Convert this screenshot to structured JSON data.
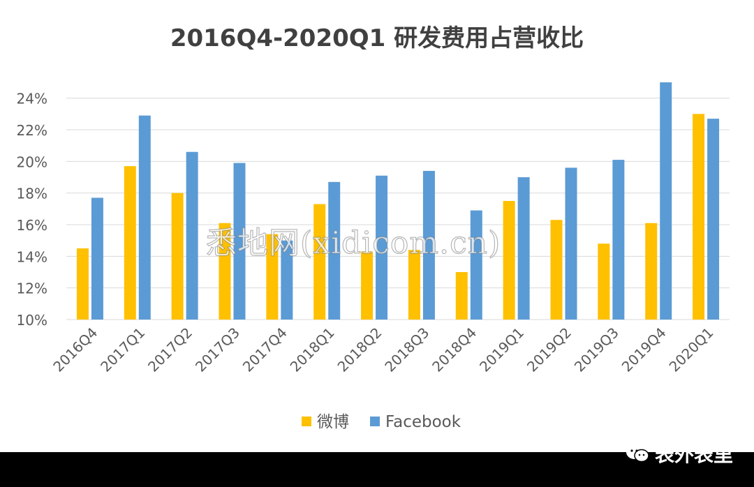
{
  "chart_data": {
    "type": "bar",
    "title": "2016Q4-2020Q1 研发费用占营收比",
    "categories": [
      "2016Q4",
      "2017Q1",
      "2017Q2",
      "2017Q3",
      "2017Q4",
      "2018Q1",
      "2018Q2",
      "2018Q3",
      "2018Q4",
      "2019Q1",
      "2019Q2",
      "2019Q3",
      "2019Q4",
      "2020Q1"
    ],
    "series": [
      {
        "name": "微博",
        "color": "#FFC000",
        "values": [
          14.5,
          19.7,
          18.0,
          16.1,
          15.4,
          17.3,
          14.3,
          14.4,
          13.0,
          17.5,
          16.3,
          14.8,
          16.1,
          23.0
        ]
      },
      {
        "name": "Facebook",
        "color": "#5B9BD5",
        "values": [
          17.7,
          22.9,
          20.6,
          19.9,
          15.0,
          18.7,
          19.1,
          19.4,
          16.9,
          19.0,
          19.6,
          20.1,
          25.0,
          22.7
        ]
      }
    ],
    "ylim": [
      10,
      25
    ],
    "yticks": [
      10,
      12,
      14,
      16,
      18,
      20,
      22,
      24
    ],
    "ytick_labels": [
      "10%",
      "12%",
      "14%",
      "16%",
      "18%",
      "20%",
      "22%",
      "24%"
    ],
    "grid": true,
    "legend_position": "bottom",
    "xlabel": "",
    "ylabel": ""
  },
  "watermark": "悉地网(xidicom.cn)",
  "brand": {
    "name": "表外表里"
  }
}
